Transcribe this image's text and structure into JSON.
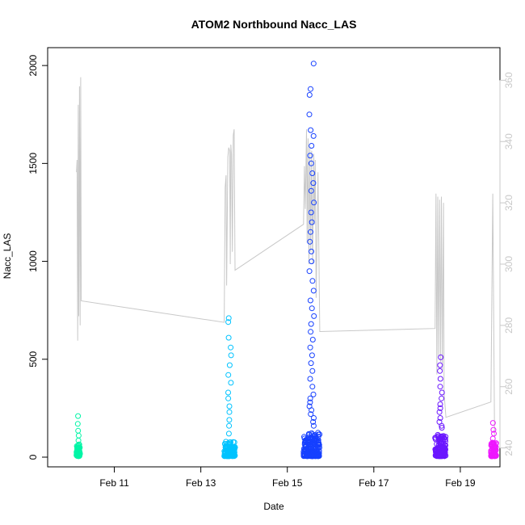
{
  "chart_data": {
    "type": "scatter",
    "title": "ATOM2 Northbound Nacc_LAS",
    "xlabel": "Date",
    "ylabel": "Nacc_LAS",
    "x_domain_days": [
      "2018-02-09T11:00",
      "2018-02-19T22:00"
    ],
    "ylim": [
      0,
      2050
    ],
    "y_ticks": [
      0,
      500,
      1000,
      1500,
      2000
    ],
    "x_ticks": [
      {
        "value": "2018-02-11",
        "label": "Feb 11"
      },
      {
        "value": "2018-02-13",
        "label": "Feb 13"
      },
      {
        "value": "2018-02-15",
        "label": "Feb 15"
      },
      {
        "value": "2018-02-17",
        "label": "Feb 17"
      },
      {
        "value": "2018-02-19",
        "label": "Feb 19"
      }
    ],
    "secondary_axis": {
      "lim": [
        237,
        368
      ],
      "ticks": [
        240,
        260,
        280,
        300,
        320,
        340,
        360
      ],
      "color": "#c8c8c8"
    },
    "grid": false,
    "legend": "none",
    "point_series": [
      {
        "color": "#00f5a6",
        "t_start": "2018-02-10T03:00",
        "t_end": "2018-02-10T05:00",
        "typical_max": 60,
        "spikes": [
          85,
          110,
          135,
          170,
          210
        ]
      },
      {
        "color": "#00c3ff",
        "t_start": "2018-02-13T13:00",
        "t_end": "2018-02-13T19:00",
        "typical_max": 75,
        "spikes": [
          120,
          160,
          190,
          230,
          260,
          300,
          330,
          380,
          420,
          470,
          520,
          560,
          610,
          690,
          710
        ]
      },
      {
        "color": "#1640ff",
        "t_start": "2018-02-15T09:00",
        "t_end": "2018-02-15T18:00",
        "typical_max": 120,
        "spikes": [
          2010,
          1880,
          1850,
          1750,
          1670,
          1640,
          1590,
          1540,
          1500,
          1450,
          1400,
          1360,
          1300,
          1250,
          1200,
          1150,
          1100,
          1050,
          1000,
          950,
          900,
          850,
          800,
          760,
          720,
          680,
          640,
          600,
          560,
          520,
          480,
          440,
          400,
          360,
          320,
          300,
          280,
          260,
          240,
          220,
          200,
          180,
          160
        ]
      },
      {
        "color": "#6b16ff",
        "t_start": "2018-02-18T10:00",
        "t_end": "2018-02-18T16:00",
        "typical_max": 110,
        "spikes": [
          510,
          470,
          440,
          400,
          360,
          330,
          300,
          270,
          250,
          230,
          200,
          180,
          160,
          150
        ]
      },
      {
        "color": "#ee17ff",
        "t_start": "2018-02-19T17:00",
        "t_end": "2018-02-19T20:00",
        "typical_max": 75,
        "spikes": [
          95,
          120,
          140,
          175
        ]
      }
    ],
    "line_series": {
      "color": "#c8c8c8",
      "points": [
        [
          "2018-02-10T03:00",
          330
        ],
        [
          "2018-02-10T03:20",
          334
        ],
        [
          "2018-02-10T03:40",
          275
        ],
        [
          "2018-02-10T04:00",
          352
        ],
        [
          "2018-02-10T04:15",
          283
        ],
        [
          "2018-02-10T04:40",
          358
        ],
        [
          "2018-02-10T05:00",
          280
        ],
        [
          "2018-02-10T05:20",
          361
        ],
        [
          "2018-02-10T05:40",
          288
        ],
        [
          "2018-02-13T13:00",
          281
        ],
        [
          "2018-02-13T13:30",
          325
        ],
        [
          "2018-02-13T14:00",
          329
        ],
        [
          "2018-02-13T14:20",
          293
        ],
        [
          "2018-02-13T15:00",
          335
        ],
        [
          "2018-02-13T15:30",
          338
        ],
        [
          "2018-02-13T16:00",
          337
        ],
        [
          "2018-02-13T16:20",
          300
        ],
        [
          "2018-02-13T16:40",
          339
        ],
        [
          "2018-02-13T17:00",
          336
        ],
        [
          "2018-02-13T17:30",
          304
        ],
        [
          "2018-02-13T18:00",
          342
        ],
        [
          "2018-02-13T18:30",
          344
        ],
        [
          "2018-02-13T19:00",
          298
        ],
        [
          "2018-02-15T09:00",
          313
        ],
        [
          "2018-02-15T09:30",
          332
        ],
        [
          "2018-02-15T10:00",
          318
        ],
        [
          "2018-02-15T10:40",
          344
        ],
        [
          "2018-02-15T11:00",
          307
        ],
        [
          "2018-02-15T11:30",
          341
        ],
        [
          "2018-02-15T12:00",
          300
        ],
        [
          "2018-02-15T12:30",
          338
        ],
        [
          "2018-02-15T13:00",
          304
        ],
        [
          "2018-02-15T13:30",
          337
        ],
        [
          "2018-02-15T14:00",
          300
        ],
        [
          "2018-02-15T14:40",
          336
        ],
        [
          "2018-02-15T15:00",
          313
        ],
        [
          "2018-02-15T15:30",
          334
        ],
        [
          "2018-02-15T16:00",
          289
        ],
        [
          "2018-02-15T17:00",
          330
        ],
        [
          "2018-02-15T18:00",
          278
        ],
        [
          "2018-02-18T10:00",
          279
        ],
        [
          "2018-02-18T10:30",
          323
        ],
        [
          "2018-02-18T11:00",
          264
        ],
        [
          "2018-02-18T11:30",
          322
        ],
        [
          "2018-02-18T12:00",
          270
        ],
        [
          "2018-02-18T12:30",
          321
        ],
        [
          "2018-02-18T13:00",
          268
        ],
        [
          "2018-02-18T13:30",
          322
        ],
        [
          "2018-02-18T14:00",
          265
        ],
        [
          "2018-02-18T14:40",
          320
        ],
        [
          "2018-02-18T15:00",
          258
        ],
        [
          "2018-02-18T16:00",
          250
        ],
        [
          "2018-02-19T17:00",
          255
        ],
        [
          "2018-02-19T18:00",
          323
        ],
        [
          "2018-02-19T19:00",
          244
        ]
      ]
    }
  }
}
